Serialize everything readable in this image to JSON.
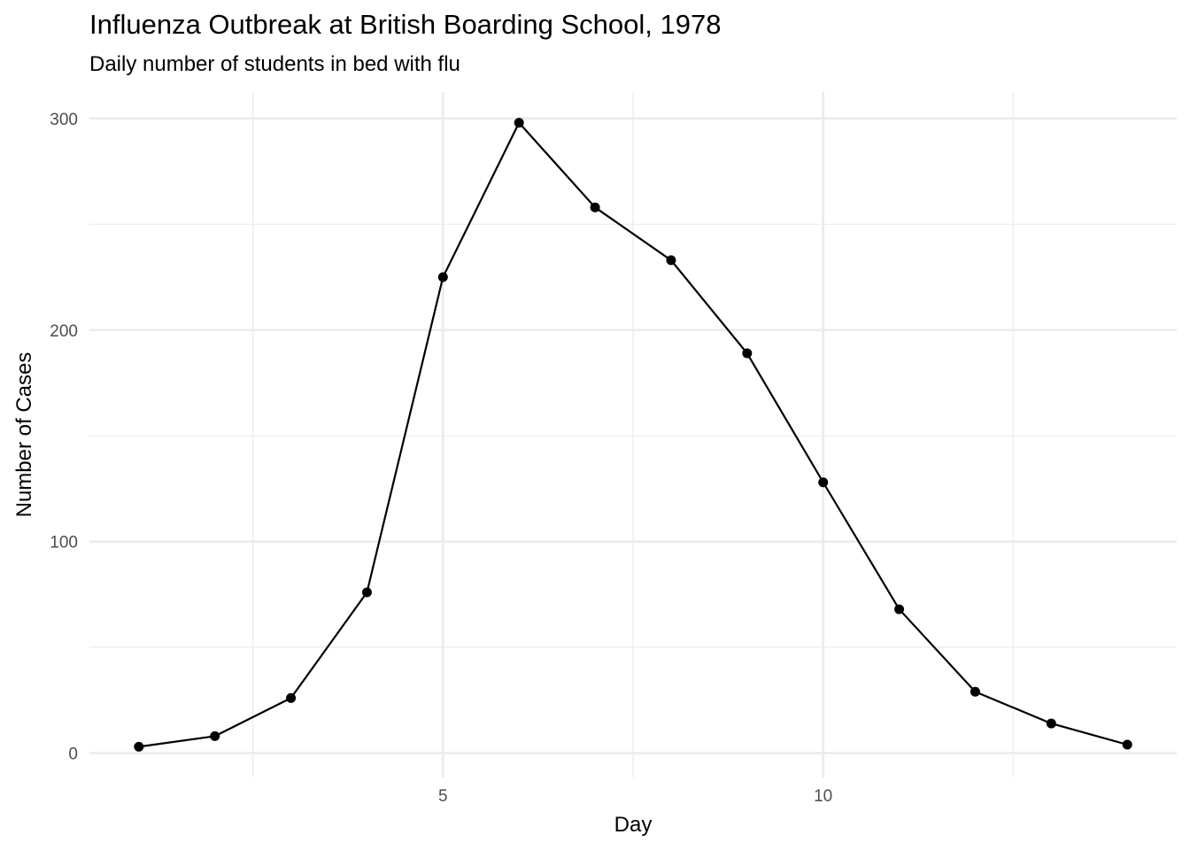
{
  "chart_data": {
    "type": "line",
    "title": "Influenza Outbreak at British Boarding School, 1978",
    "subtitle": "Daily number of students in bed with flu",
    "xlabel": "Day",
    "ylabel": "Number of Cases",
    "x": [
      1,
      2,
      3,
      4,
      5,
      6,
      7,
      8,
      9,
      10,
      11,
      12,
      13,
      14
    ],
    "series": [
      {
        "values": [
          3,
          8,
          26,
          76,
          225,
          298,
          258,
          233,
          189,
          128,
          68,
          29,
          14,
          4
        ]
      }
    ],
    "xlim": [
      0.35,
      14.65
    ],
    "ylim": [
      -11.5,
      312.5
    ],
    "x_ticks": [
      5,
      10
    ],
    "x_tick_labels": [
      "5",
      "10"
    ],
    "x_minor_ticks": [
      2.5,
      7.5,
      12.5
    ],
    "y_ticks": [
      0,
      100,
      200,
      300
    ],
    "y_tick_labels": [
      "0",
      "100",
      "200",
      "300"
    ],
    "y_minor_ticks": [
      50,
      150,
      250
    ],
    "grid": true,
    "legend": "none",
    "colors": {
      "line": "#000000",
      "points": "#000000",
      "grid": "#ebebeb",
      "tick_text": "#4d4d4d"
    }
  }
}
